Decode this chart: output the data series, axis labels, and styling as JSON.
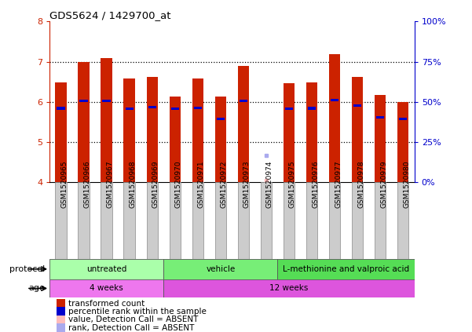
{
  "title": "GDS5624 / 1429700_at",
  "samples": [
    "GSM1520965",
    "GSM1520966",
    "GSM1520967",
    "GSM1520968",
    "GSM1520969",
    "GSM1520970",
    "GSM1520971",
    "GSM1520972",
    "GSM1520973",
    "GSM1520974",
    "GSM1520975",
    "GSM1520976",
    "GSM1520977",
    "GSM1520978",
    "GSM1520979",
    "GSM1520980"
  ],
  "bar_heights": [
    6.48,
    7.0,
    7.1,
    6.59,
    6.63,
    6.14,
    6.59,
    6.13,
    6.89,
    4.05,
    6.47,
    6.48,
    7.18,
    6.62,
    6.18,
    6.0
  ],
  "blue_markers": [
    5.84,
    6.02,
    6.02,
    5.83,
    5.87,
    5.83,
    5.85,
    5.57,
    6.02,
    4.67,
    5.83,
    5.84,
    6.04,
    5.91,
    5.62,
    5.57
  ],
  "absent_indices": [
    9
  ],
  "ylim_left": [
    4,
    8
  ],
  "ylim_right": [
    0,
    100
  ],
  "yticks_left": [
    4,
    5,
    6,
    7,
    8
  ],
  "yticks_right": [
    0,
    25,
    50,
    75,
    100
  ],
  "ytick_labels_right": [
    "0%",
    "25%",
    "50%",
    "75%",
    "100%"
  ],
  "bar_baseline": 4,
  "bar_color": "#cc2200",
  "blue_color": "#0000cc",
  "absent_bar_color": "#ffbbbb",
  "absent_rank_color": "#aaaaee",
  "protocol_groups": [
    {
      "label": "untreated",
      "start": 0,
      "end": 4,
      "color": "#aaffaa"
    },
    {
      "label": "vehicle",
      "start": 5,
      "end": 9,
      "color": "#77ee77"
    },
    {
      "label": "L-methionine and valproic acid",
      "start": 10,
      "end": 15,
      "color": "#55dd55"
    }
  ],
  "age_groups": [
    {
      "label": "4 weeks",
      "start": 0,
      "end": 4,
      "color": "#ee77ee"
    },
    {
      "label": "12 weeks",
      "start": 5,
      "end": 15,
      "color": "#dd55dd"
    }
  ],
  "legend_items": [
    {
      "label": "transformed count",
      "color": "#cc2200"
    },
    {
      "label": "percentile rank within the sample",
      "color": "#0000cc"
    },
    {
      "label": "value, Detection Call = ABSENT",
      "color": "#ffbbbb"
    },
    {
      "label": "rank, Detection Call = ABSENT",
      "color": "#aaaaee"
    }
  ],
  "bar_width": 0.5
}
